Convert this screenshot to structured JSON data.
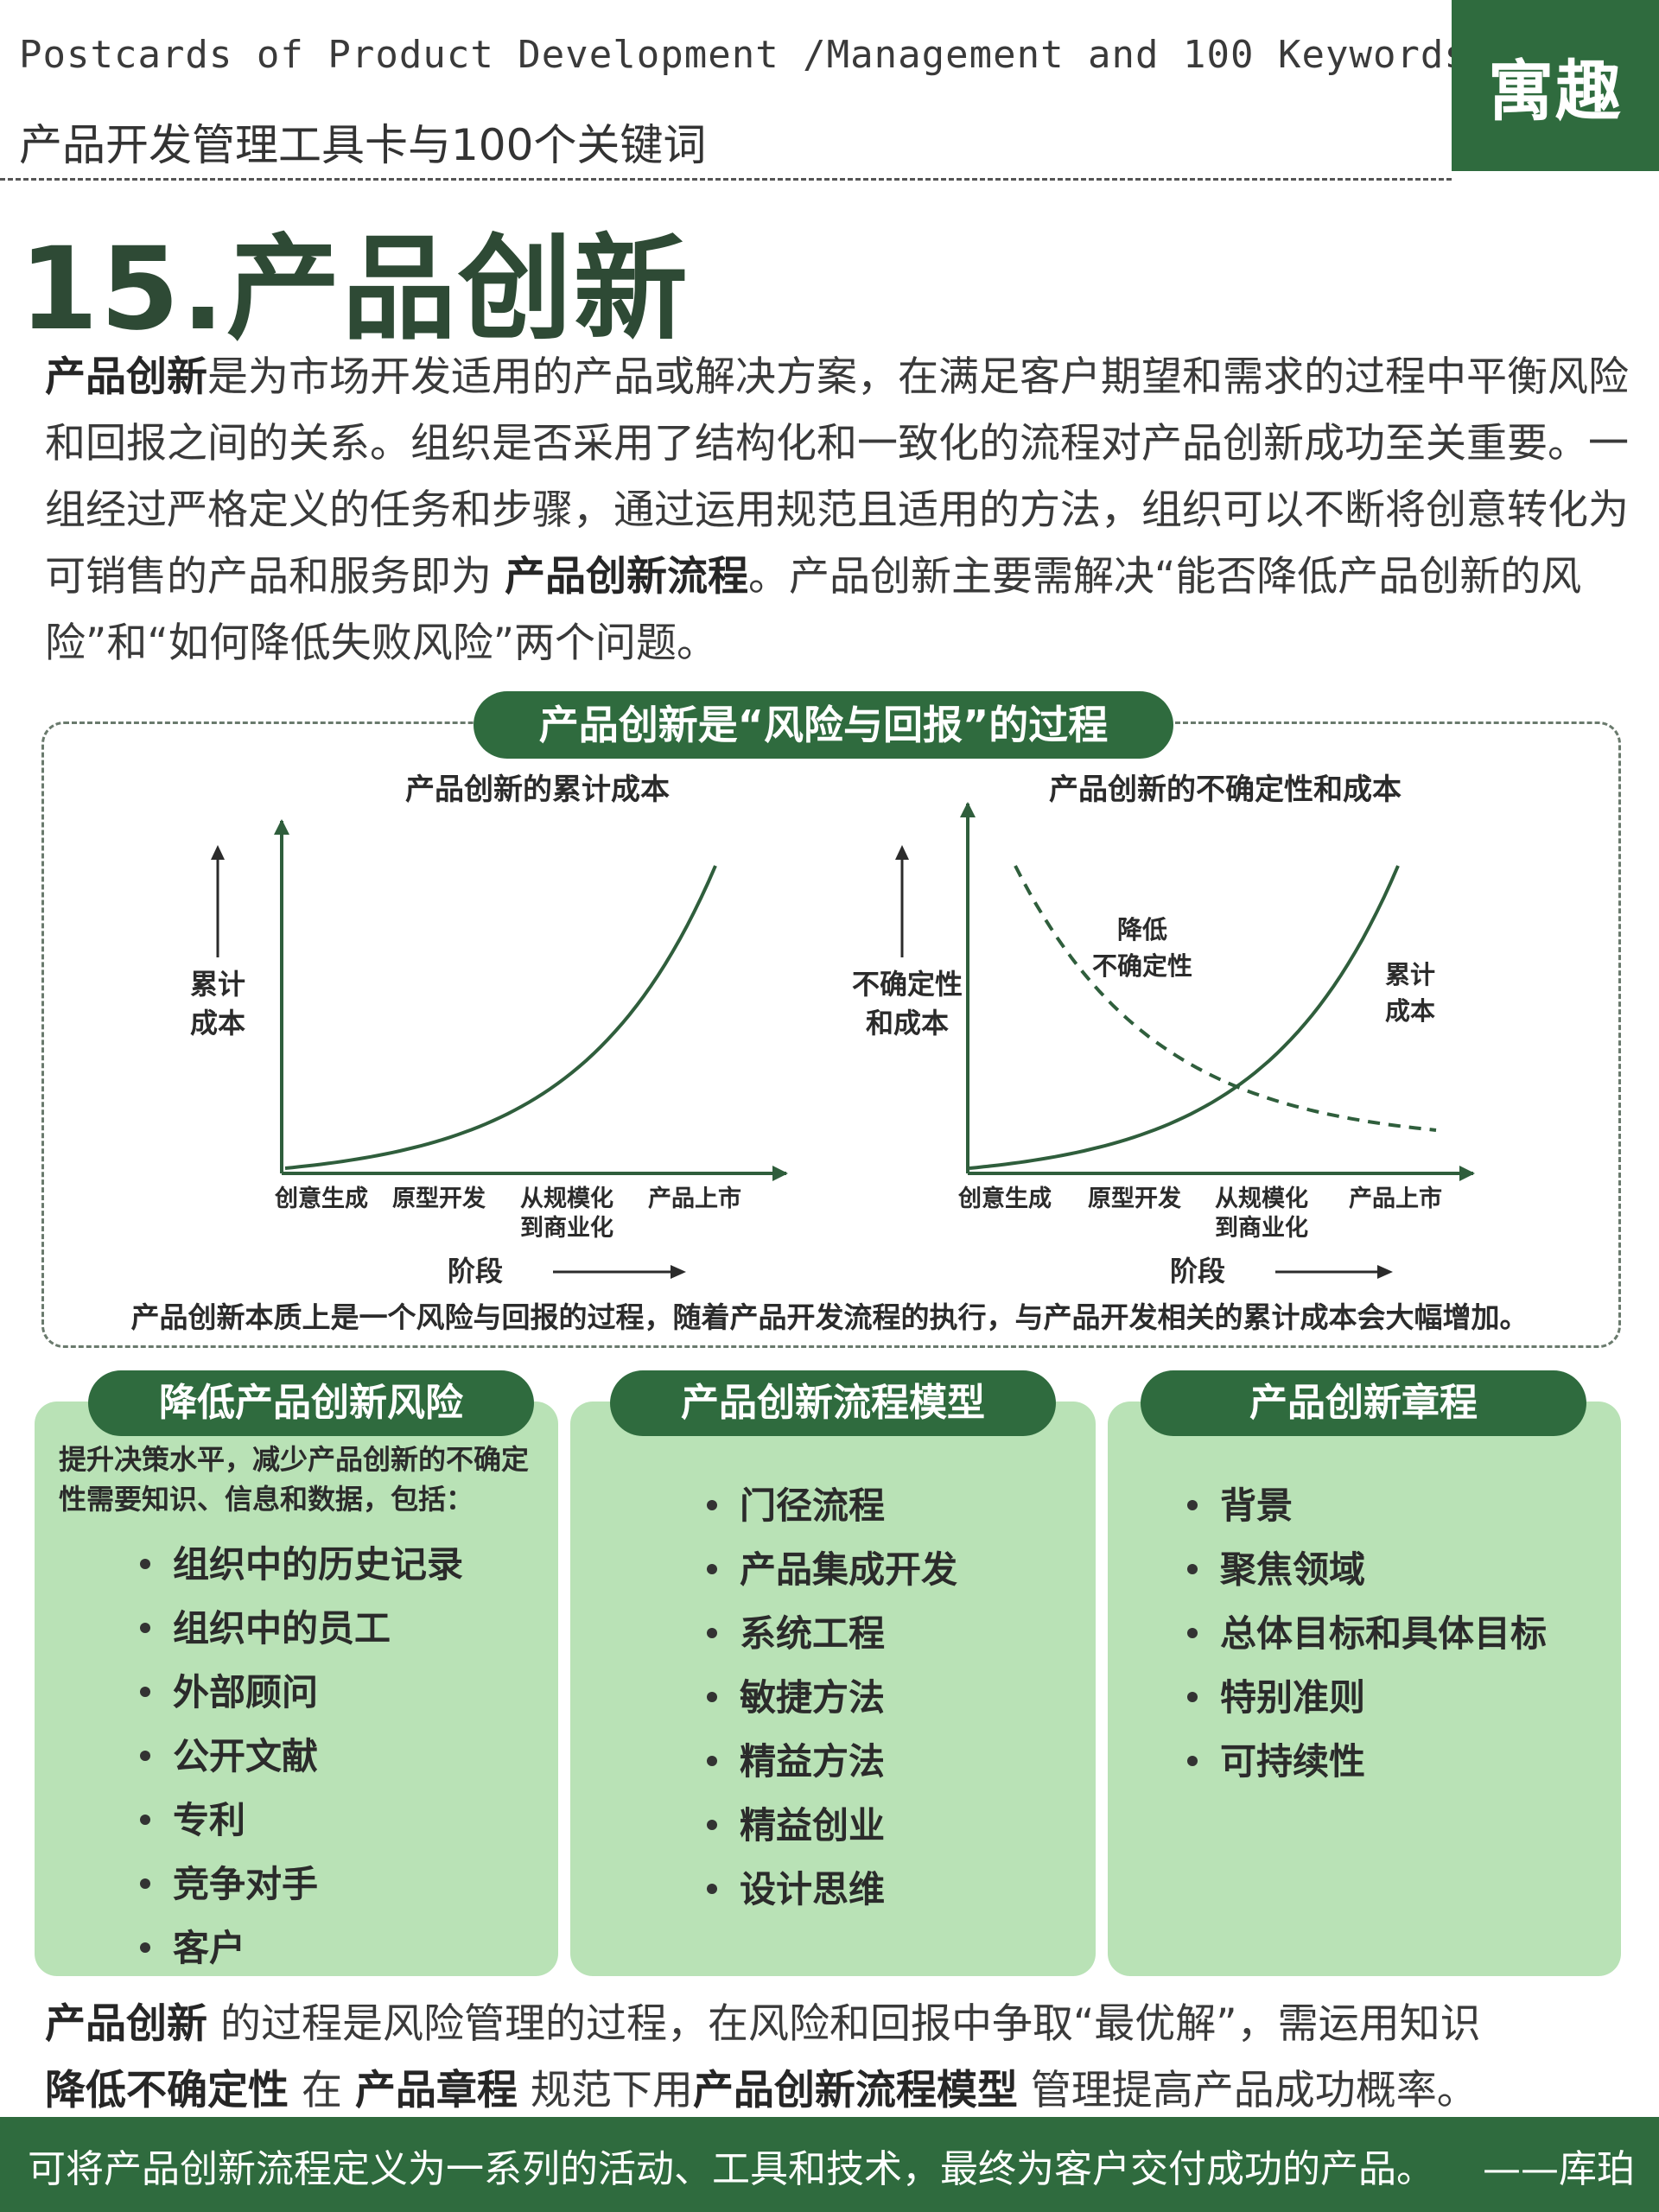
{
  "header": {
    "en_title": "Postcards of Product Development /Management and 100 Keywords",
    "cn_title": "产品开发管理工具卡与100个关键词",
    "brand": "寓趣"
  },
  "title": "15.产品创新",
  "intro": {
    "term1": "产品创新",
    "text1": "是为市场开发适用的产品或解决方案，在满足客户期望和需求的过程中平衡风险和回报之间的关系。组织是否采用了结构化和一致化的流程对产品创新成功至关重要。一组经过严格定义的任务和步骤，通过运用规范且适用的方法，组织可以不断将创意转化为可销售的产品和服务即为 ",
    "term2": "产品创新流程",
    "text2": "。产品创新主要需解决“能否降低产品创新的风险”和“如何降低失败风险”两个问题。"
  },
  "chart_section": {
    "pill": "产品创新是“风险与回报”的过程",
    "caption": "产品创新本质上是一个风险与回报的过程，随着产品开发流程的执行，与产品开发相关的累计成本会大幅增加。"
  },
  "chart_data": [
    {
      "type": "line",
      "title": "产品创新的累计成本",
      "ylabel": [
        "累计",
        "成本"
      ],
      "xlabel": "阶段",
      "categories": [
        "创意生成",
        "原型开发",
        "从规模化到商业化",
        "产品上市"
      ],
      "category_lines": [
        [
          "创意生成"
        ],
        [
          "原型开发"
        ],
        [
          "从规模化",
          "到商业化"
        ],
        [
          "产品上市"
        ]
      ],
      "series": [
        {
          "name": "",
          "shape": "exponential",
          "values": [
            0,
            12,
            38,
            100
          ]
        }
      ],
      "ylim": [
        0,
        110
      ],
      "line_color": "#2f5e3c"
    },
    {
      "type": "line",
      "title": "产品创新的不确定性和成本",
      "ylabel": [
        "不确定性",
        "和成本"
      ],
      "xlabel": "阶段",
      "categories": [
        "创意生成",
        "原型开发",
        "从规模化到商业化",
        "产品上市"
      ],
      "category_lines": [
        [
          "创意生成"
        ],
        [
          "原型开发"
        ],
        [
          "从规模化",
          "到商业化"
        ],
        [
          "产品上市"
        ]
      ],
      "series": [
        {
          "name": "累计成本",
          "label_lines": [
            "累计",
            "成本"
          ],
          "shape": "exponential",
          "dashed": false,
          "values": [
            0,
            12,
            38,
            100
          ]
        },
        {
          "name": "降低不确定性",
          "label_lines": [
            "降低",
            "不确定性"
          ],
          "shape": "decay",
          "dashed": true,
          "values": [
            100,
            55,
            28,
            12
          ]
        }
      ],
      "ylim": [
        0,
        110
      ],
      "line_color": "#2f5e3c"
    }
  ],
  "panels": [
    {
      "title": "降低产品创新风险",
      "intro": "提升决策水平，减少产品创新的不确定性需要知识、信息和数据，包括：",
      "items": [
        "组织中的历史记录",
        "组织中的员工",
        "外部顾问",
        "公开文献",
        "专利",
        "竞争对手",
        "客户"
      ]
    },
    {
      "title": "产品创新流程模型",
      "items": [
        "门径流程",
        "产品集成开发",
        "系统工程",
        "敏捷方法",
        "精益方法",
        "精益创业",
        "设计思维"
      ]
    },
    {
      "title": "产品创新章程",
      "items": [
        "背景",
        "聚焦领域",
        "总体目标和具体目标",
        "特别准则",
        "可持续性"
      ]
    }
  ],
  "summary": {
    "t1": "产品创新",
    "s1": " 的过程是风险管理的过程，在风险和回报中争取“最优解”，需运用知识",
    "t2": "降低不确定性",
    "s2": " 在 ",
    "t3": "产品章程",
    "s3": " 规范下用",
    "t4": "产品创新流程模型",
    "s4": " 管理提高产品成功概率。"
  },
  "footer": {
    "quote": "可将产品创新流程定义为一系列的活动、工具和技术，最终为客户交付成功的产品。",
    "author": "——库珀"
  }
}
